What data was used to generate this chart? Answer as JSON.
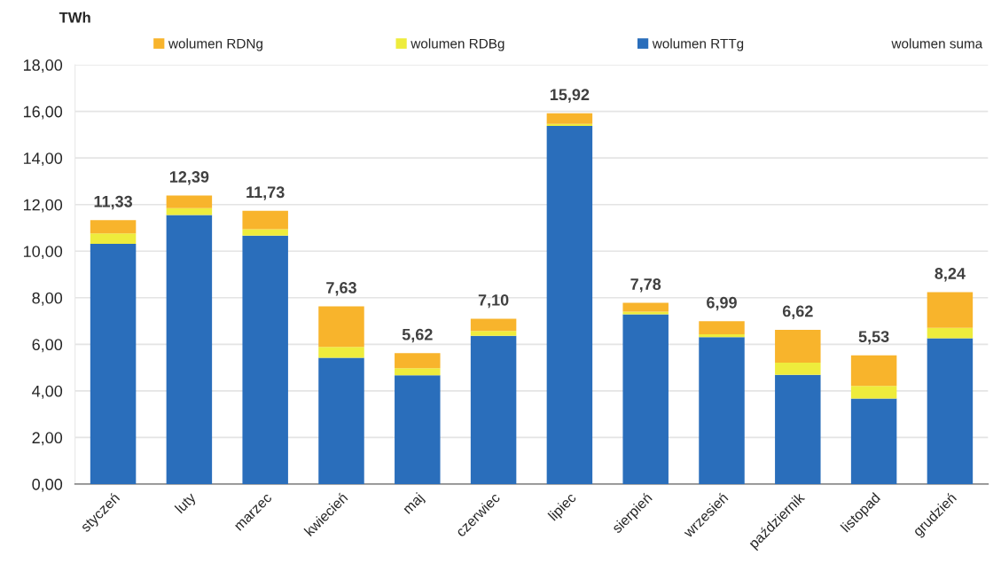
{
  "chart_data": {
    "type": "bar",
    "stacked": true,
    "ylabel": "TWh",
    "categories": [
      "styczeń",
      "luty",
      "marzec",
      "kwiecień",
      "maj",
      "czerwiec",
      "lipiec",
      "sierpień",
      "wrzesień",
      "październik",
      "listopad",
      "grudzień"
    ],
    "series": [
      {
        "name": "wolumen RTTg",
        "color": "#2a6ebb",
        "values": [
          10.31,
          11.55,
          10.67,
          5.42,
          4.67,
          6.36,
          15.38,
          7.29,
          6.31,
          4.69,
          3.67,
          6.26
        ]
      },
      {
        "name": "wolumen RDBg",
        "color": "#eeec3c",
        "values": [
          0.45,
          0.3,
          0.27,
          0.47,
          0.3,
          0.21,
          0.08,
          0.11,
          0.12,
          0.52,
          0.54,
          0.45
        ]
      },
      {
        "name": "wolumen RDNg",
        "color": "#f8b42c",
        "values": [
          0.57,
          0.54,
          0.79,
          1.74,
          0.65,
          0.53,
          0.46,
          0.38,
          0.56,
          1.41,
          1.32,
          1.53
        ]
      }
    ],
    "totals": [
      "11,33",
      "12,39",
      "11,73",
      "7,63",
      "5,62",
      "7,10",
      "15,92",
      "7,78",
      "6,99",
      "6,62",
      "5,53",
      "8,24"
    ],
    "annotations": [
      "wolumen suma"
    ],
    "ylim": [
      0,
      18
    ],
    "yticks": [
      {
        "value": 0,
        "label": "0,00"
      },
      {
        "value": 2,
        "label": "2,00"
      },
      {
        "value": 4,
        "label": "4,00"
      },
      {
        "value": 6,
        "label": "6,00"
      },
      {
        "value": 8,
        "label": "8,00"
      },
      {
        "value": 10,
        "label": "10,00"
      },
      {
        "value": 12,
        "label": "12,00"
      },
      {
        "value": 14,
        "label": "14,00"
      },
      {
        "value": 16,
        "label": "16,00"
      },
      {
        "value": 18,
        "label": "18,00"
      }
    ],
    "grid": "y",
    "legend": "top"
  }
}
